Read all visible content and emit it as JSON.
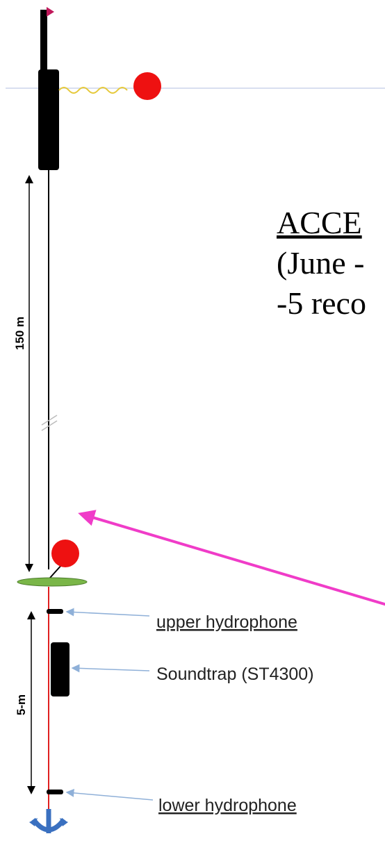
{
  "title_lines": [
    "ACCE",
    "(June -",
    "-5 reco"
  ],
  "dimensions": {
    "upper": "150 m",
    "lower": "5-m"
  },
  "labels": {
    "upper_hydrophone": "upper hydrophone",
    "soundtrap": "Soundtrap (ST4300)",
    "lower_hydrophone": "lower hydrophone"
  }
}
